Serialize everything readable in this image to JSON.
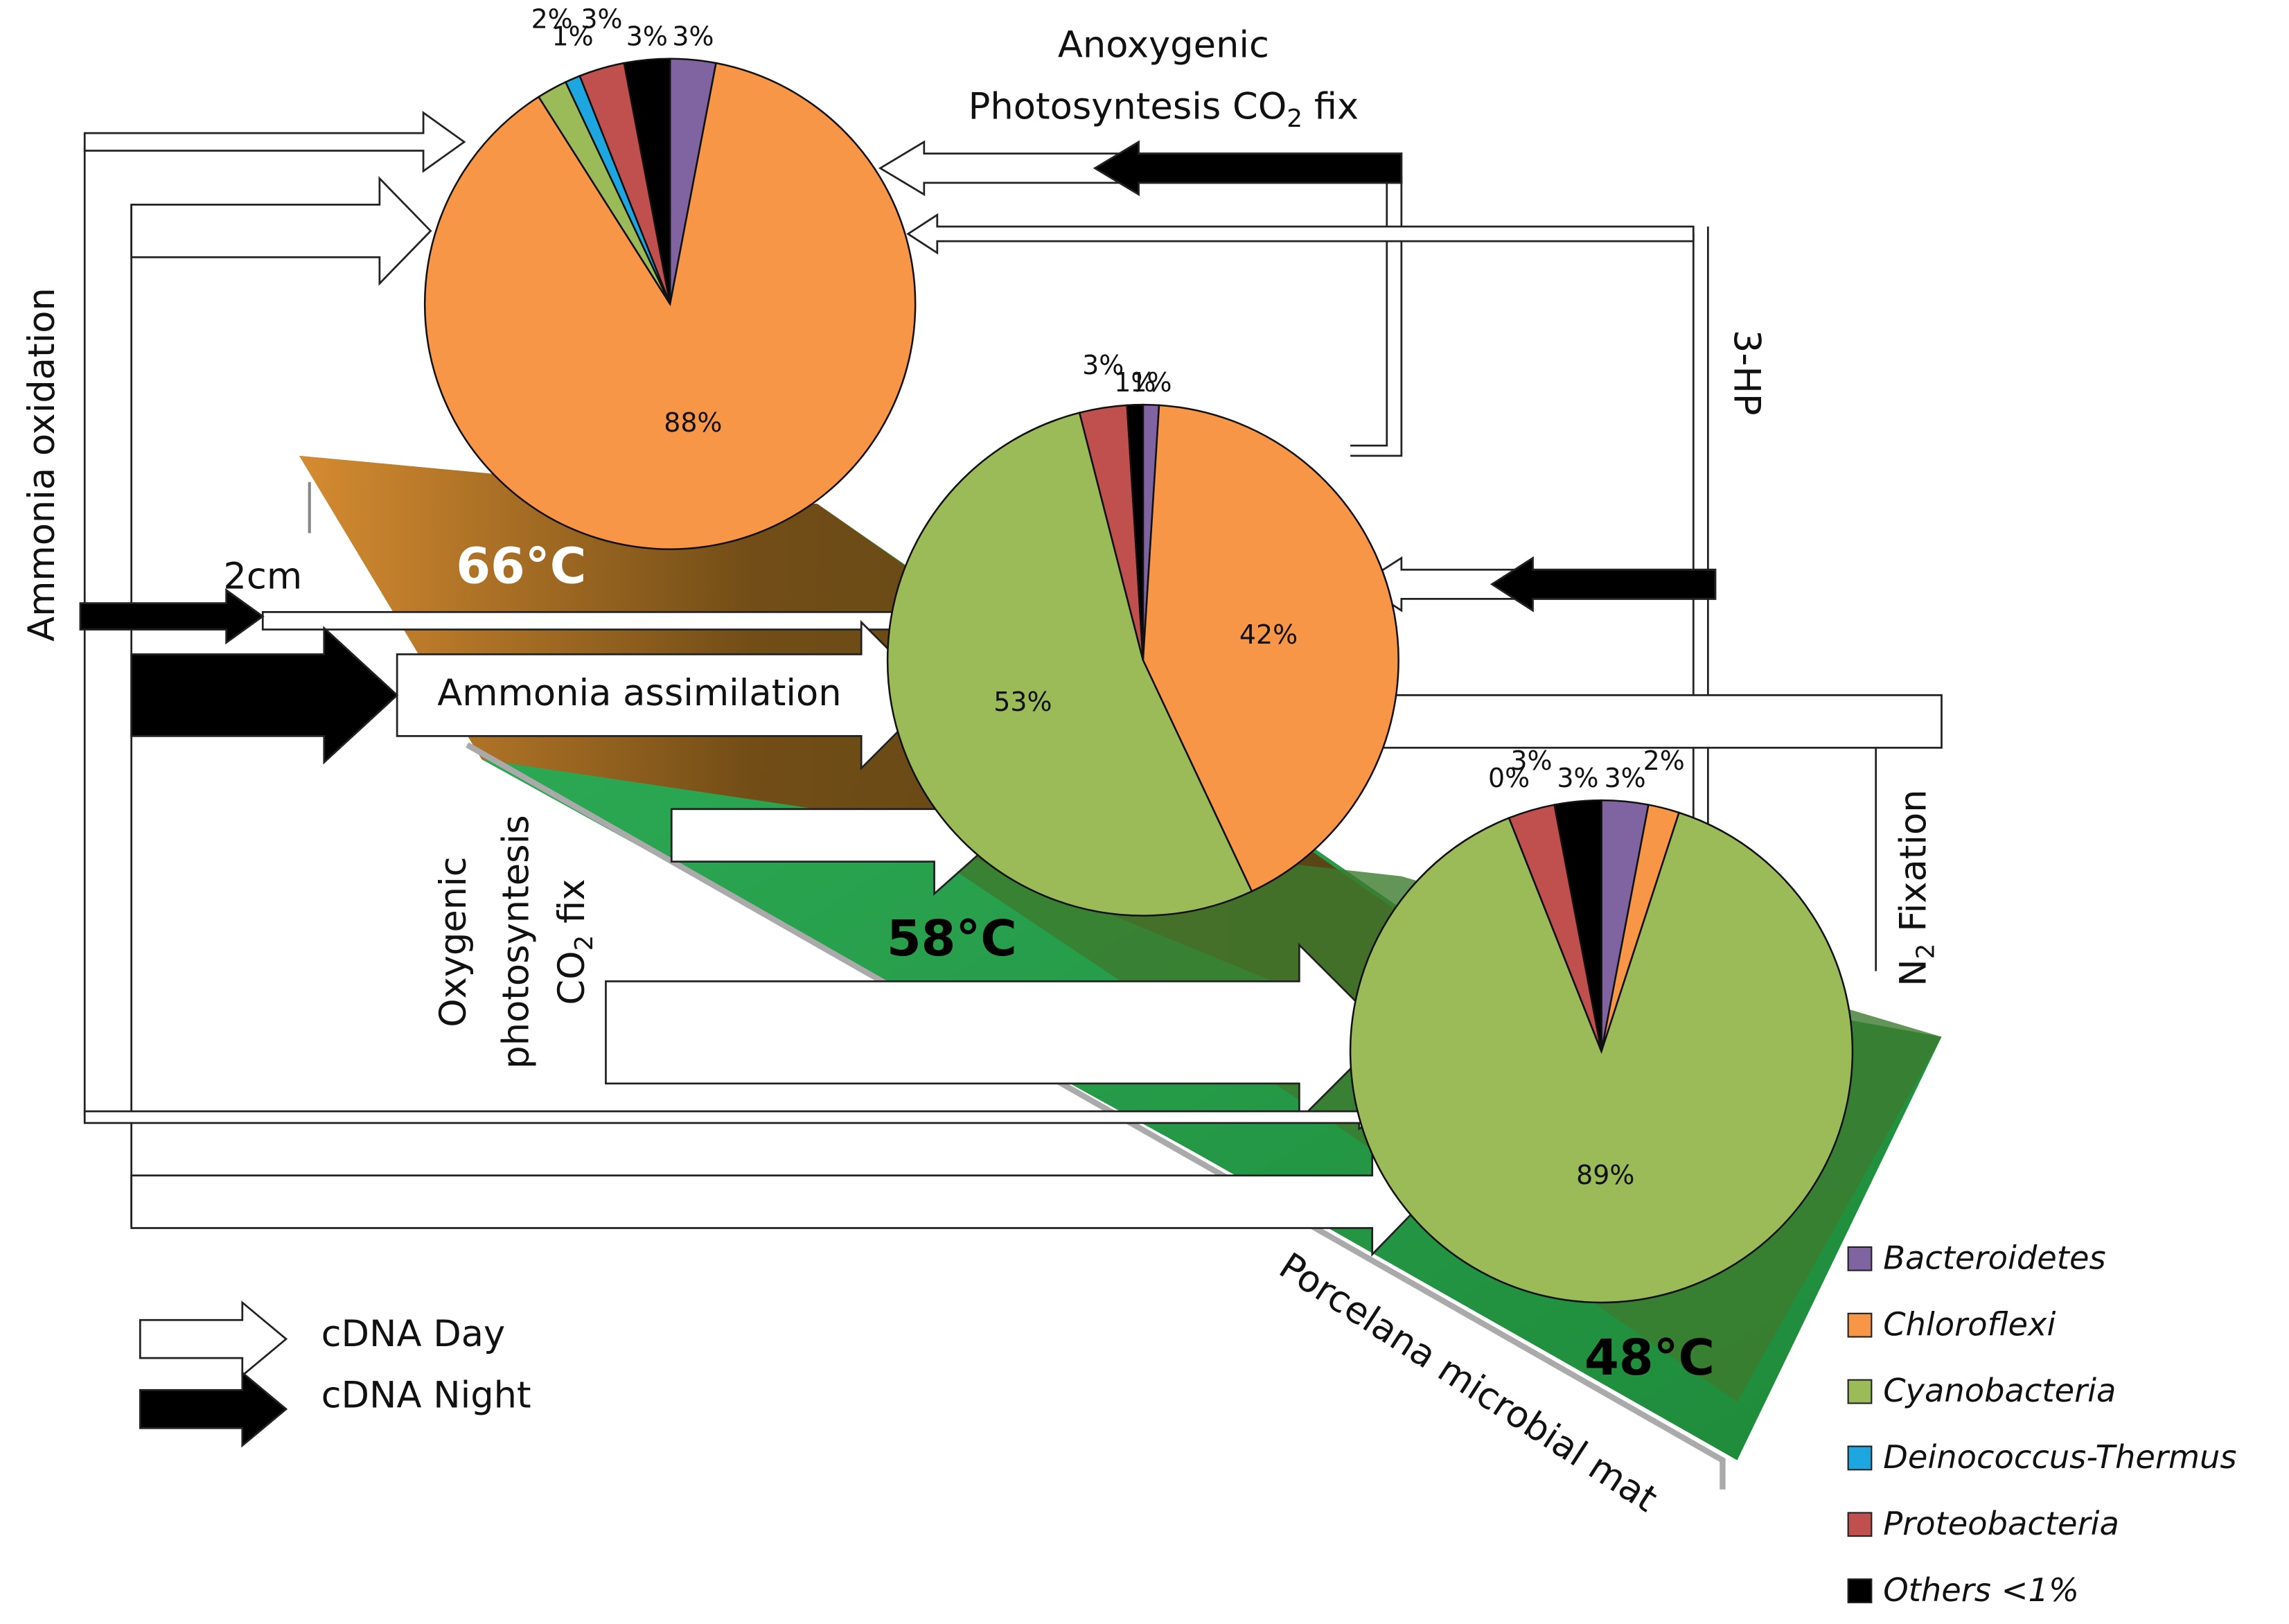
{
  "chart_data": [
    {
      "type": "pie",
      "title": "66°C",
      "categories": [
        "Bacteroidetes",
        "Chloroflexi",
        "Cyanobacteria",
        "Deinococcus-Thermus",
        "Proteobacteria",
        "Others <1%"
      ],
      "colors": [
        "#8064a2",
        "#f79646",
        "#9bbb59",
        "#1ea6e0",
        "#c0504d",
        "#000000"
      ],
      "values": [
        3,
        88,
        2,
        1,
        3,
        3
      ],
      "value_labels": [
        "3%",
        "88%",
        "2%",
        "1%",
        "3%",
        "3%"
      ]
    },
    {
      "type": "pie",
      "title": "58°C",
      "categories": [
        "Bacteroidetes",
        "Chloroflexi",
        "Cyanobacteria",
        "Proteobacteria",
        "Others <1%"
      ],
      "colors": [
        "#8064a2",
        "#f79646",
        "#9bbb59",
        "#c0504d",
        "#000000"
      ],
      "values": [
        1,
        42,
        53,
        3,
        1
      ],
      "value_labels": [
        "1%",
        "42%",
        "53%",
        "3%",
        "1%"
      ]
    },
    {
      "type": "pie",
      "title": "48°C",
      "categories": [
        "Bacteroidetes",
        "Chloroflexi",
        "Cyanobacteria",
        "Deinococcus-Thermus",
        "Proteobacteria",
        "Others <1%"
      ],
      "colors": [
        "#8064a2",
        "#f79646",
        "#9bbb59",
        "#1ea6e0",
        "#c0504d",
        "#000000"
      ],
      "values": [
        3,
        2,
        89,
        0,
        3,
        3
      ],
      "value_labels": [
        "3%",
        "2%",
        "89%",
        "0%",
        "3%",
        "3%"
      ]
    }
  ],
  "legend": {
    "items": [
      {
        "name": "Bacteroidetes",
        "color": "#8064a2"
      },
      {
        "name": "Chloroflexi",
        "color": "#f79646"
      },
      {
        "name": "Cyanobacteria",
        "color": "#9bbb59"
      },
      {
        "name": "Deinococcus-Thermus",
        "color": "#1ea6e0"
      },
      {
        "name": "Proteobacteria",
        "color": "#c0504d"
      },
      {
        "name": "Others <1%",
        "color": "#000000"
      }
    ]
  },
  "arrow_legend": {
    "day": "cDNA Day",
    "night": "cDNA Night"
  },
  "annotations": {
    "anoxygenic_line1": "Anoxygenic",
    "anoxygenic_line2": [
      "Photosyntesis CO",
      "2",
      " fix"
    ],
    "three_hp": "3-HP",
    "ammonia_oxidation": "Ammonia oxidation",
    "scale": "2cm",
    "ammonia_assimilation": "Ammonia assimilation",
    "oxygenic_line1": "Oxygenic",
    "oxygenic_line2": "photosyntesis",
    "oxygenic_line3": [
      "CO",
      "2",
      " fix"
    ],
    "n2_fixation": [
      "N",
      "2",
      " Fixation"
    ],
    "mat": "Porcelana microbial mat"
  }
}
